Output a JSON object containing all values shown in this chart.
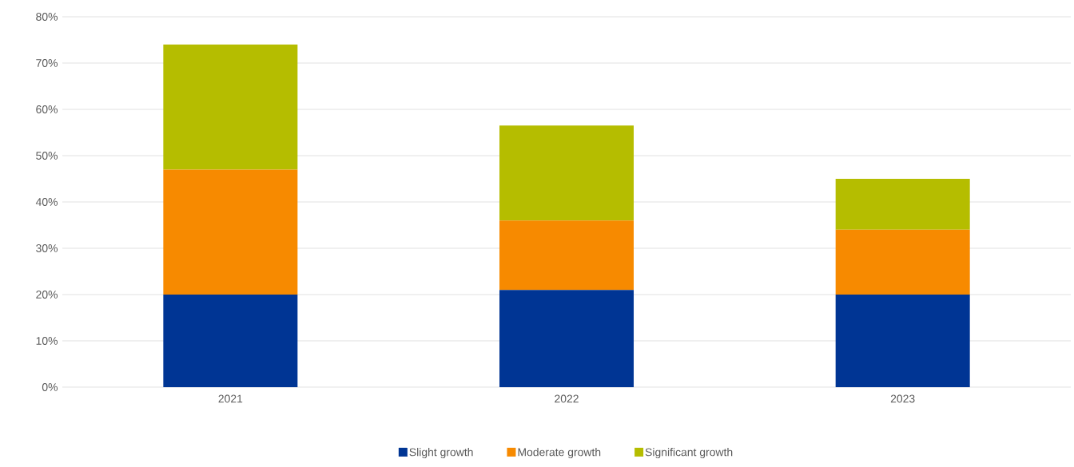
{
  "chart_data": {
    "type": "bar",
    "stacked": true,
    "categories": [
      "2021",
      "2022",
      "2023"
    ],
    "series": [
      {
        "name": "Slight growth",
        "color": "#003594",
        "values": [
          20,
          21,
          20
        ]
      },
      {
        "name": "Moderate growth",
        "color": "#f78a00",
        "values": [
          27,
          15,
          14
        ]
      },
      {
        "name": "Significant growth",
        "color": "#b5bd00",
        "values": [
          27,
          20.5,
          11
        ]
      }
    ],
    "ylim": [
      0,
      80
    ],
    "yticks": [
      {
        "value": 0,
        "label": "0%"
      },
      {
        "value": 10,
        "label": "10%"
      },
      {
        "value": 20,
        "label": "20%"
      },
      {
        "value": 30,
        "label": "30%"
      },
      {
        "value": 40,
        "label": "40%"
      },
      {
        "value": 50,
        "label": "50%"
      },
      {
        "value": 60,
        "label": "60%"
      },
      {
        "value": 70,
        "label": "70%"
      },
      {
        "value": 80,
        "label": "80%"
      }
    ],
    "grid": "y",
    "legend": "bottom"
  }
}
